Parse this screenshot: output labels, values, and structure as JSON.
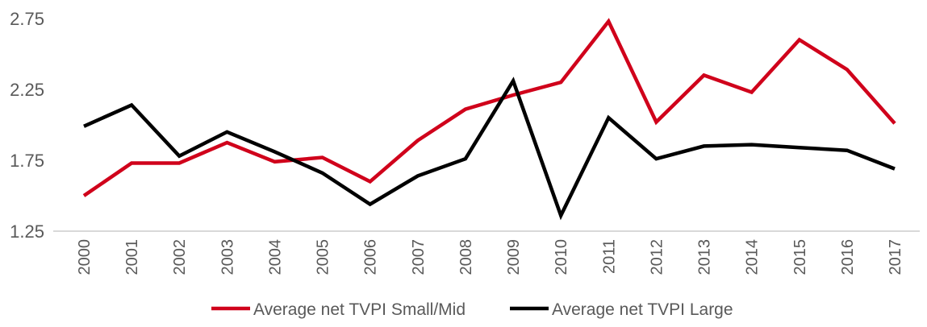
{
  "chart_data": {
    "type": "line",
    "title": "",
    "xlabel": "",
    "ylabel": "",
    "categories": [
      "2000",
      "2001",
      "2002",
      "2003",
      "2004",
      "2005",
      "2006",
      "2007",
      "2008",
      "2009",
      "2010",
      "2011",
      "2012",
      "2013",
      "2014",
      "2015",
      "2016",
      "2017"
    ],
    "ylim": [
      1.25,
      2.75
    ],
    "yticks": [
      "1.25",
      "1.75",
      "2.25",
      "2.75"
    ],
    "grid": false,
    "legend_position": "bottom",
    "series": [
      {
        "name": "Average net TVPI Small/Mid",
        "color": "#d0021b",
        "values": [
          1.5,
          1.73,
          1.73,
          1.875,
          1.74,
          1.77,
          1.6,
          1.89,
          2.11,
          2.21,
          2.3,
          2.73,
          2.02,
          2.35,
          2.23,
          2.6,
          2.39,
          2.01
        ]
      },
      {
        "name": "Average net TVPI Large",
        "color": "#000000",
        "values": [
          1.99,
          2.14,
          1.78,
          1.95,
          1.81,
          1.66,
          1.44,
          1.64,
          1.76,
          2.31,
          1.36,
          2.05,
          1.76,
          1.85,
          1.86,
          1.84,
          1.82,
          1.69
        ]
      }
    ]
  }
}
